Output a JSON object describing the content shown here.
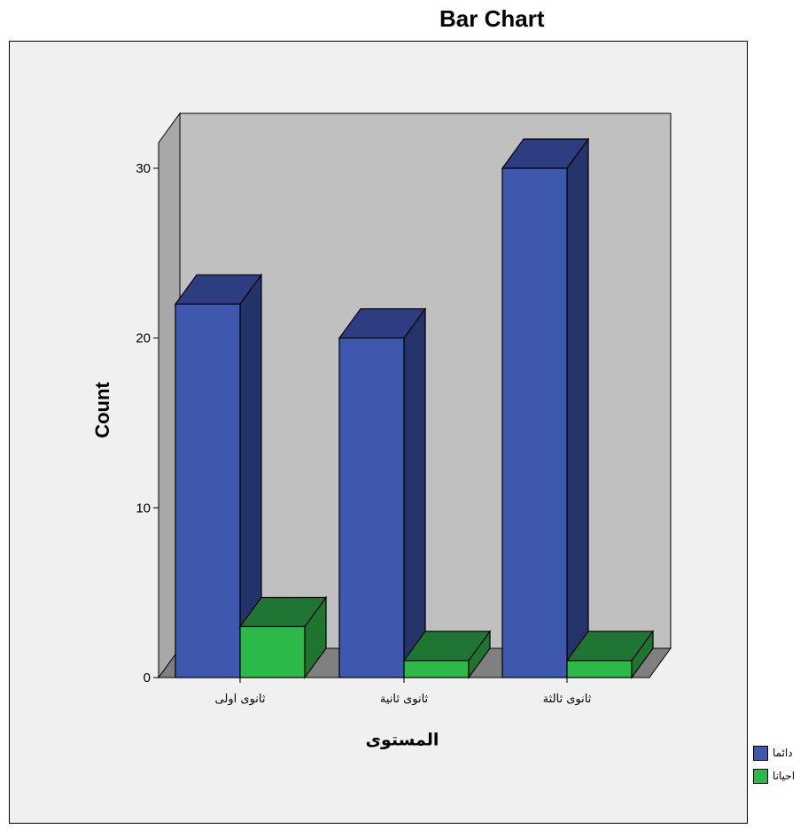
{
  "colors": {
    "frame_bg": "#f0f0f0",
    "back_wall": "#c0c0c0",
    "side_wall": "#a8a8a8",
    "floor": "#808080"
  },
  "chart_data": {
    "type": "bar",
    "title": "Bar Chart",
    "xlabel": "المستوى",
    "ylabel": "Count",
    "categories": [
      "ثانوى اولى",
      "ثانوى ثانية",
      "ثانوى ثالثة"
    ],
    "series": [
      {
        "name": "دائما",
        "values": [
          22,
          20,
          30
        ],
        "color": "#3e58ad",
        "side": "#25336b",
        "top": "#2e3d82"
      },
      {
        "name": "احيانا",
        "values": [
          3,
          1,
          1
        ],
        "color": "#2db84a",
        "side": "#1d7530",
        "top": "#1f7533"
      }
    ],
    "yticks": [
      0,
      10,
      20,
      30
    ],
    "ylim": [
      0,
      30
    ],
    "style": "3d",
    "legend": "bottom-right"
  }
}
